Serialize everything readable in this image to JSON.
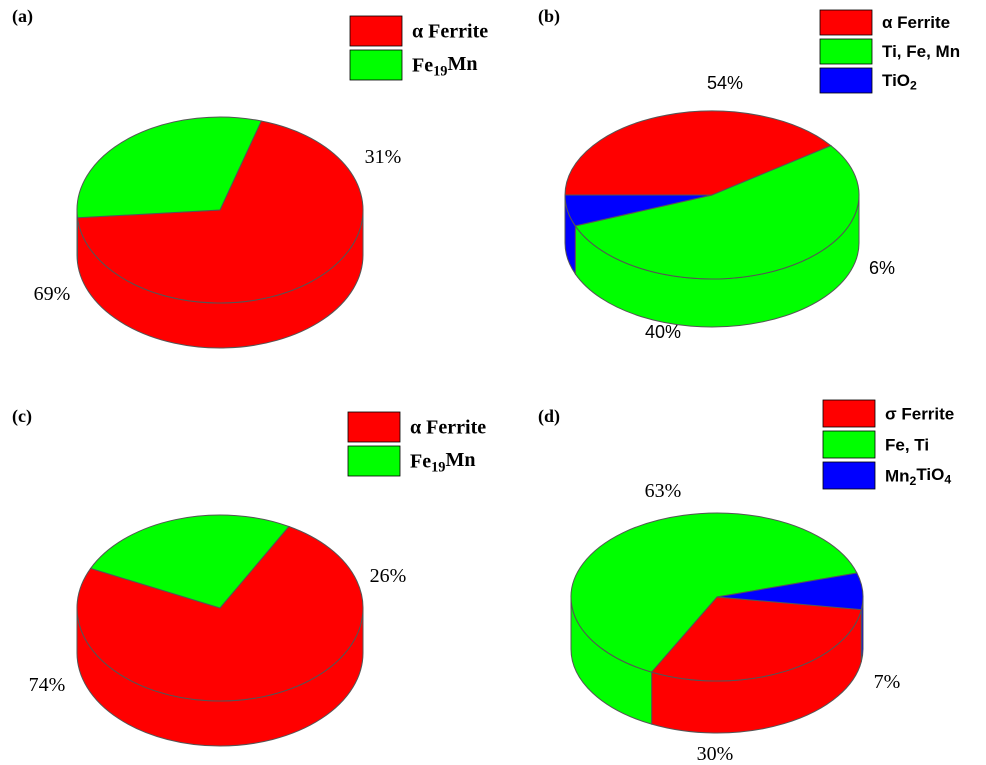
{
  "chart_data": [
    {
      "type": "pie",
      "panel_label": "(a)",
      "title": "",
      "categories": [
        "α Ferrite",
        "Fe19Mn"
      ],
      "legend_entries": [
        {
          "label": "α Ferrite",
          "base": "α Ferrite",
          "sub": ""
        },
        {
          "label": "Fe19Mn",
          "base": "Fe",
          "sub": "19",
          "rest": "Mn"
        }
      ],
      "values": [
        69,
        31
      ],
      "value_labels": [
        "69%",
        "31%"
      ],
      "colors": [
        "#ff0000",
        "#00ff00"
      ],
      "legend_position": "top-right"
    },
    {
      "type": "pie",
      "panel_label": "(b)",
      "title": "",
      "categories": [
        "α Ferrite",
        "Ti, Fe, Mn",
        "TiO2"
      ],
      "legend_entries": [
        {
          "label": "α Ferrite",
          "base": "α Ferrite",
          "sub": ""
        },
        {
          "label": "Ti, Fe, Mn",
          "base": "Ti, Fe, Mn",
          "sub": ""
        },
        {
          "label": "TiO2",
          "base": "TiO",
          "sub": "2"
        }
      ],
      "values": [
        40,
        54,
        6
      ],
      "value_labels": [
        "40%",
        "54%",
        "6%"
      ],
      "colors": [
        "#ff0000",
        "#00ff00",
        "#0000ff"
      ],
      "legend_position": "top-right"
    },
    {
      "type": "pie",
      "panel_label": "(c)",
      "title": "",
      "categories": [
        "α Ferrite",
        "Fe19Mn"
      ],
      "legend_entries": [
        {
          "label": "α Ferrite",
          "base": "α Ferrite",
          "sub": ""
        },
        {
          "label": "Fe19Mn",
          "base": "Fe",
          "sub": "19",
          "rest": "Mn"
        }
      ],
      "values": [
        74,
        26
      ],
      "value_labels": [
        "74%",
        "26%"
      ],
      "colors": [
        "#ff0000",
        "#00ff00"
      ],
      "legend_position": "top-right"
    },
    {
      "type": "pie",
      "panel_label": "(d)",
      "title": "",
      "categories": [
        "σ Ferrite",
        "Fe, Ti",
        "Mn2TiO4"
      ],
      "legend_entries": [
        {
          "label": "σ Ferrite",
          "base": "σ Ferrite",
          "sub": ""
        },
        {
          "label": "Fe, Ti",
          "base": "Fe, Ti",
          "sub": ""
        },
        {
          "label": "Mn2TiO4",
          "base": "Mn",
          "sub": "2",
          "rest": "TiO",
          "sub2": "4"
        }
      ],
      "values": [
        30,
        63,
        7
      ],
      "value_labels": [
        "30%",
        "63%",
        "7%"
      ],
      "colors": [
        "#ff0000",
        "#00ff00",
        "#0000ff"
      ],
      "legend_position": "top-right"
    }
  ]
}
